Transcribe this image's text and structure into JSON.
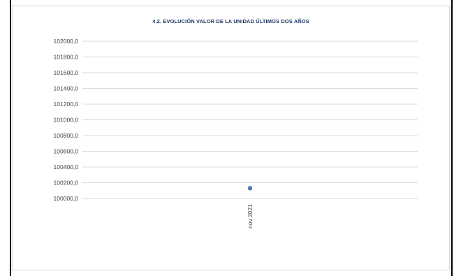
{
  "chart_data": {
    "type": "scatter",
    "title": "4.2. EVOLUCIÓN VALOR DE LA UNIDAD ÚLTIMOS DOS AÑOS",
    "xlabel": "",
    "ylabel": "",
    "categories": [
      "nov 2021"
    ],
    "values": [
      100130.0
    ],
    "y_ticks": [
      "102000,0",
      "101800,0",
      "101600,0",
      "101400,0",
      "101200,0",
      "101000,0",
      "100800,0",
      "100600,0",
      "100400,0",
      "100200,0",
      "100000,0"
    ],
    "ylim": [
      100000,
      102000
    ],
    "grid": true,
    "legend": "none",
    "colors": {
      "marker": "#4f7ab8",
      "grid": "#d9d9d9",
      "title": "#1f3864",
      "tick_text": "#404040"
    }
  }
}
